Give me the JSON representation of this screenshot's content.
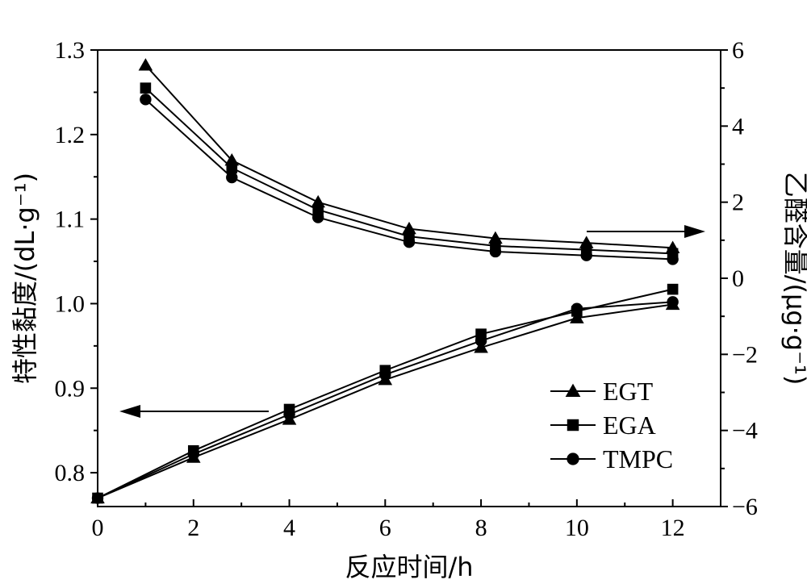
{
  "chart_data": {
    "type": "line",
    "xlabel": "反应时间/h",
    "ylabel_left": "特性黏度/(dL·g⁻¹)",
    "ylabel_right": "乙醛含量/(μg·g⁻¹)",
    "xlim": [
      0,
      13
    ],
    "ylim_left": [
      0.76,
      1.3
    ],
    "ylim_right": [
      -6,
      6
    ],
    "x_ticks": [
      "0",
      "2",
      "4",
      "6",
      "8",
      "10",
      "12"
    ],
    "y_left_ticks": [
      "0.8",
      "0.9",
      "1.0",
      "1.1",
      "1.2",
      "1.3"
    ],
    "y_right_ticks": [
      "−6",
      "−4",
      "−2",
      "0",
      "2",
      "4",
      "6"
    ],
    "grid": false,
    "legend_position": "center-right",
    "legend": [
      {
        "name": "EGT",
        "marker": "triangle"
      },
      {
        "name": "EGA",
        "marker": "square"
      },
      {
        "name": "TMPC",
        "marker": "circle"
      }
    ],
    "series_left_axis": [
      {
        "name": "EGT",
        "marker": "triangle",
        "x": [
          0,
          2,
          4,
          6,
          8,
          10,
          12
        ],
        "y": [
          0.77,
          0.818,
          0.863,
          0.91,
          0.948,
          0.983,
          0.999
        ]
      },
      {
        "name": "EGA",
        "marker": "square",
        "x": [
          0,
          2,
          4,
          6,
          8,
          10,
          12
        ],
        "y": [
          0.77,
          0.826,
          0.875,
          0.921,
          0.964,
          0.991,
          1.017
        ]
      },
      {
        "name": "TMPC",
        "marker": "circle",
        "x": [
          0,
          2,
          4,
          6,
          8,
          10,
          12
        ],
        "y": [
          0.77,
          0.822,
          0.869,
          0.916,
          0.956,
          0.994,
          1.002
        ]
      }
    ],
    "series_right_axis": [
      {
        "name": "EGT",
        "marker": "triangle",
        "x": [
          1,
          2.8,
          4.6,
          6.5,
          8.3,
          10.2,
          12
        ],
        "y": [
          5.6,
          3.1,
          2.0,
          1.3,
          1.05,
          0.93,
          0.8
        ]
      },
      {
        "name": "EGA",
        "marker": "square",
        "x": [
          1,
          2.8,
          4.6,
          6.5,
          8.3,
          10.2,
          12
        ],
        "y": [
          5.0,
          2.9,
          1.8,
          1.1,
          0.85,
          0.75,
          0.65
        ]
      },
      {
        "name": "TMPC",
        "marker": "circle",
        "x": [
          1,
          2.8,
          4.6,
          6.5,
          8.3,
          10.2,
          12
        ],
        "y": [
          4.7,
          2.65,
          1.6,
          0.95,
          0.7,
          0.6,
          0.5
        ]
      }
    ],
    "annotations": [
      {
        "type": "arrow",
        "direction": "left",
        "refers_to": "left axis"
      },
      {
        "type": "arrow",
        "direction": "right",
        "refers_to": "right axis"
      }
    ]
  }
}
